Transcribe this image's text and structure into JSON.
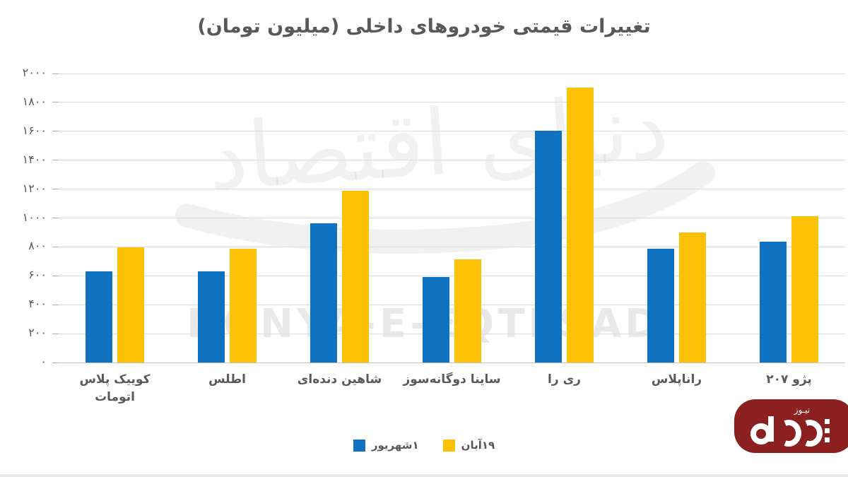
{
  "title": "تغییرات قیمتی خودروهای داخلی (میلیون تومان)",
  "watermark": {
    "fa": "دنیای اقتصاد",
    "en": "DONYA-E-EQTESAD"
  },
  "logo": {
    "text": "نیـوز",
    "bg": "#8c1f20"
  },
  "colors": {
    "series_shahrivar": "#0e72c0",
    "series_aban": "#fdc105",
    "gridline": "#dcdcdc",
    "text": "#595959",
    "logo_bg": "#8c1f20"
  },
  "y_axis": {
    "tick_labels": [
      "۰",
      "۲۰۰",
      "۴۰۰",
      "۶۰۰",
      "۸۰۰",
      "۱۰۰۰",
      "۱۲۰۰",
      "۱۴۰۰",
      "۱۶۰۰",
      "۱۸۰۰",
      "۲۰۰۰"
    ]
  },
  "legend": [
    {
      "label": "۱شهریور",
      "color": "#0e72c0"
    },
    {
      "label": "۱۹آبان",
      "color": "#fdc105"
    }
  ],
  "chart_data": {
    "type": "bar",
    "title": "تغییرات قیمتی خودروهای داخلی (میلیون تومان)",
    "xlabel": "",
    "ylabel": "میلیون تومان",
    "categories": [
      "کوییک پلاس اتومات",
      "اطلس",
      "شاهین دنده‌ای",
      "ساینا دوگانه‌سوز",
      "ری را",
      "راناپلاس",
      "پژو ۲۰۷"
    ],
    "series": [
      {
        "name": "۱شهریور",
        "color": "#0e72c0",
        "values": [
          630,
          630,
          965,
          590,
          1605,
          785,
          835
        ]
      },
      {
        "name": "۱۹آبان",
        "color": "#fdc105",
        "values": [
          795,
          785,
          1190,
          715,
          1900,
          900,
          1010
        ]
      }
    ],
    "ylim": [
      0,
      2000
    ],
    "ytick_step": 200,
    "grid": true,
    "legend_position": "bottom"
  }
}
